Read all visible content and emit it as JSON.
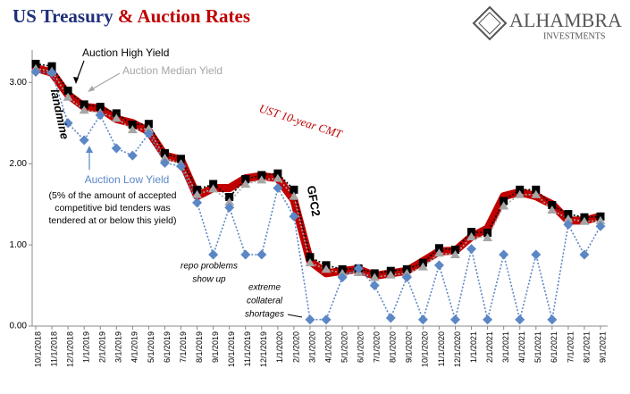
{
  "chart_data": {
    "type": "line",
    "title": [
      "US Treasury",
      "& Auction Rates"
    ],
    "logo": {
      "name": "ALHAMBRA",
      "tagline": "INVESTMENTS"
    },
    "categories": [
      "10/1/2018",
      "11/1/2018",
      "12/1/2018",
      "1/1/2019",
      "2/1/2019",
      "3/1/2019",
      "4/1/2019",
      "5/1/2019",
      "6/1/2019",
      "7/1/2019",
      "8/1/2019",
      "9/1/2019",
      "10/1/2019",
      "11/1/2019",
      "12/1/2019",
      "1/1/2020",
      "2/1/2020",
      "3/1/2020",
      "4/1/2020",
      "5/1/2020",
      "6/1/2020",
      "7/1/2020",
      "8/1/2020",
      "9/1/2020",
      "10/1/2020",
      "11/1/2020",
      "12/1/2020",
      "1/1/2021",
      "2/1/2021",
      "3/1/2021",
      "4/1/2021",
      "5/1/2021",
      "6/1/2021",
      "7/1/2021",
      "8/1/2021",
      "9/1/2021"
    ],
    "series": [
      {
        "name": "UST 10-year CMT",
        "color": "#c00000",
        "values": [
          3.18,
          3.12,
          2.85,
          2.7,
          2.68,
          2.55,
          2.5,
          2.4,
          2.1,
          2.05,
          1.6,
          1.7,
          1.7,
          1.82,
          1.85,
          1.82,
          1.55,
          0.8,
          0.65,
          0.68,
          0.7,
          0.62,
          0.65,
          0.68,
          0.8,
          0.92,
          0.93,
          1.1,
          1.2,
          1.6,
          1.65,
          1.6,
          1.5,
          1.3,
          1.3,
          1.35
        ]
      },
      {
        "name": "Auction High Yield",
        "color": "#000000",
        "values": [
          3.23,
          3.2,
          2.9,
          2.73,
          2.7,
          2.62,
          2.48,
          2.49,
          2.13,
          2.06,
          1.68,
          1.75,
          1.59,
          1.81,
          1.86,
          1.88,
          1.68,
          0.85,
          0.75,
          0.7,
          0.71,
          0.65,
          0.68,
          0.7,
          0.78,
          0.96,
          0.94,
          1.16,
          1.15,
          1.54,
          1.68,
          1.68,
          1.49,
          1.38,
          1.34,
          1.35
        ]
      },
      {
        "name": "Auction Median Yield",
        "color": "#a6a6a6",
        "values": [
          3.17,
          3.14,
          2.82,
          2.66,
          2.63,
          2.56,
          2.42,
          2.43,
          2.07,
          2.0,
          1.62,
          1.69,
          1.53,
          1.75,
          1.8,
          1.82,
          1.6,
          0.78,
          0.7,
          0.65,
          0.66,
          0.6,
          0.63,
          0.65,
          0.73,
          0.9,
          0.88,
          1.1,
          1.09,
          1.48,
          1.62,
          1.62,
          1.43,
          1.32,
          1.29,
          1.3
        ]
      },
      {
        "name": "Auction Low Yield",
        "color": "#5b87c5",
        "values": [
          3.13,
          3.12,
          2.5,
          2.29,
          2.6,
          2.19,
          2.1,
          2.37,
          2.01,
          1.97,
          1.52,
          0.88,
          1.46,
          0.88,
          0.88,
          1.7,
          1.35,
          0.08,
          0.08,
          0.6,
          0.71,
          0.5,
          0.1,
          0.6,
          0.08,
          0.75,
          0.08,
          0.95,
          0.08,
          0.88,
          0.08,
          0.88,
          0.08,
          1.25,
          0.88,
          1.23
        ]
      }
    ],
    "ylim": [
      0,
      3.4
    ],
    "yticks": [
      {
        "value": 0,
        "label": "0.00"
      },
      {
        "value": 1,
        "label": "1.00"
      },
      {
        "value": 2,
        "label": "2.00"
      },
      {
        "value": 3,
        "label": "3.00"
      }
    ],
    "annotations": {
      "landmine": "landmine",
      "low_note": [
        "(5% of the amount of accepted",
        "competitive bid tenders was",
        "tendered at or below this yield)"
      ],
      "gfc": "GFC2",
      "repo": [
        "repo problems",
        "show up"
      ],
      "collateral": [
        "extreme",
        "collateral",
        "shortages"
      ]
    }
  }
}
